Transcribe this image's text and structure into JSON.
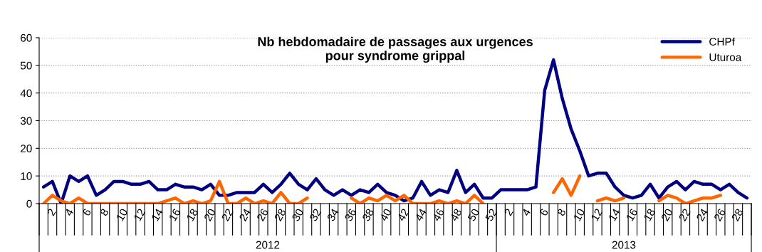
{
  "chart_data": {
    "type": "line",
    "title": "Nb hebdomadaire de passages aux urgences\npour syndrome grippal",
    "categories": [
      null,
      "2",
      null,
      "4",
      null,
      "6",
      null,
      "8",
      null,
      "10",
      null,
      "12",
      null,
      "14",
      null,
      "16",
      null,
      "18",
      null,
      "20",
      null,
      "22",
      null,
      "24",
      null,
      "26",
      null,
      "28",
      null,
      "30",
      null,
      "32",
      null,
      "34",
      null,
      "36",
      null,
      "38",
      null,
      "40",
      null,
      "42",
      null,
      "44",
      null,
      "46",
      null,
      "48",
      null,
      "50",
      null,
      "52",
      null,
      "2",
      null,
      "4",
      null,
      "6",
      null,
      "8",
      null,
      "10",
      null,
      "12",
      null,
      "14",
      null,
      "16",
      null,
      "18",
      null,
      "20",
      null,
      "22",
      null,
      "24",
      null,
      "26",
      null,
      "28",
      null
    ],
    "series": [
      {
        "name": "CHPf",
        "color": "#000080",
        "values": [
          6,
          8,
          0,
          10,
          8,
          10,
          3,
          5,
          8,
          8,
          7,
          7,
          8,
          5,
          5,
          7,
          6,
          6,
          5,
          7,
          3,
          3,
          4,
          4,
          4,
          7,
          4,
          7,
          11,
          7,
          5,
          9,
          5,
          3,
          5,
          3,
          5,
          4,
          7,
          4,
          3,
          1,
          2,
          8,
          3,
          5,
          4,
          12,
          4,
          7,
          2,
          2,
          5,
          5,
          5,
          5,
          6,
          41,
          52,
          38,
          27,
          19,
          10,
          11,
          11,
          6,
          3,
          2,
          3,
          7,
          2,
          6,
          8,
          5,
          8,
          7,
          7,
          5,
          7,
          4,
          2
        ]
      },
      {
        "name": "Uturoa",
        "color": "#ff6600",
        "values": [
          0,
          3,
          1,
          0,
          2,
          0,
          0,
          0,
          0,
          0,
          0,
          0,
          0,
          0,
          1,
          2,
          0,
          1,
          0,
          1,
          8,
          0,
          0,
          2,
          0,
          1,
          0,
          4,
          0,
          0,
          2,
          null,
          null,
          null,
          null,
          2,
          0,
          2,
          1,
          3,
          1,
          3,
          0,
          0,
          0,
          1,
          0,
          1,
          0,
          3,
          0,
          null,
          null,
          null,
          null,
          null,
          null,
          null,
          4,
          9,
          3,
          10,
          null,
          1,
          2,
          1,
          2,
          null,
          null,
          null,
          1,
          3,
          2,
          0,
          1,
          2,
          2,
          3,
          null,
          null,
          null
        ]
      }
    ],
    "annotations": [
      "2012",
      "2013"
    ],
    "ylim": [
      0,
      60
    ],
    "yticks": [
      0,
      10,
      20,
      30,
      40,
      50,
      60
    ],
    "grid": "y",
    "legend": "top right",
    "marker": "none",
    "line_style": "solid"
  }
}
